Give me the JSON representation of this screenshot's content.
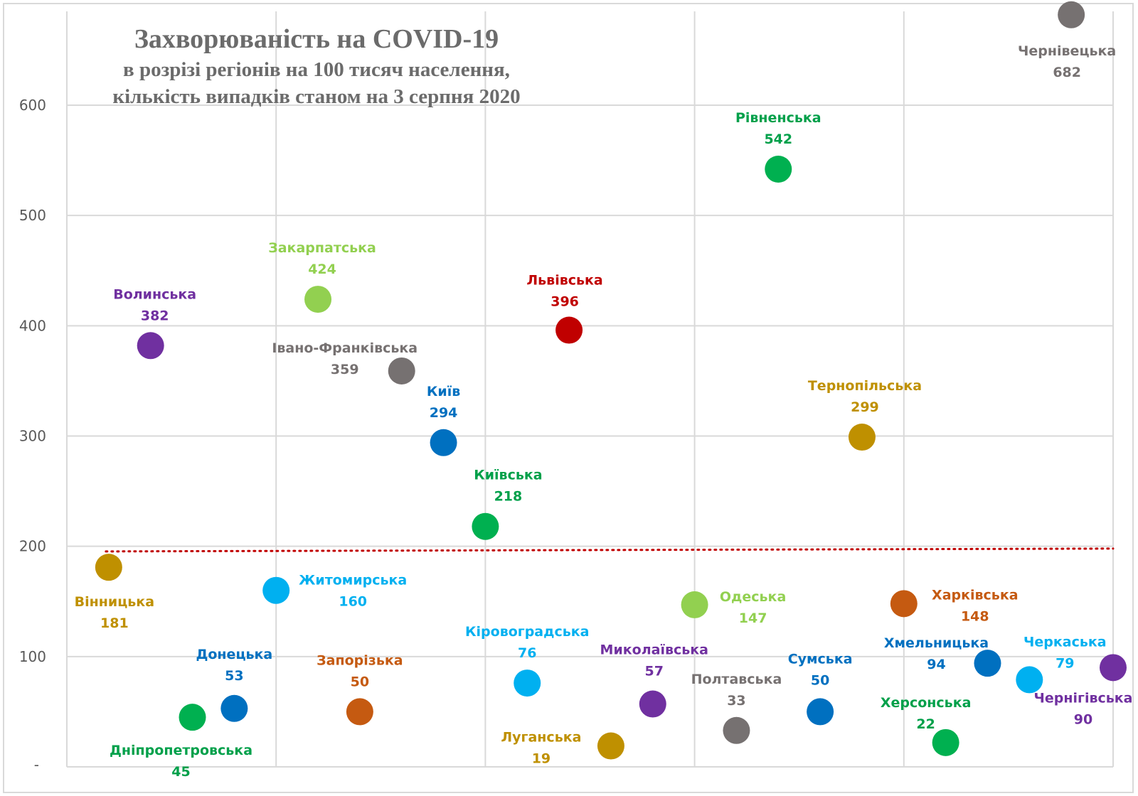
{
  "chart_data": {
    "type": "scatter",
    "title": "Захворюваність на COVID-19",
    "subtitle_lines": [
      "в розрізі регіонів на 100 тисяч населення,",
      "кількість випадків станом на 3 серпня 2020"
    ],
    "xlabel": "",
    "ylabel": "",
    "ylim": [
      0,
      685
    ],
    "xlim": [
      0,
      5
    ],
    "y_ticks": [
      0,
      100,
      200,
      300,
      400,
      500,
      600
    ],
    "y_tick_labels": [
      "-",
      "100",
      "200",
      "300",
      "400",
      "500",
      "600"
    ],
    "x_gridlines": [
      0,
      1,
      2,
      3,
      4,
      5
    ],
    "grid": true,
    "legend": "none",
    "threshold_line": {
      "value": 196,
      "style": "dotted",
      "color": "#C00000",
      "x_start": 0.2,
      "x_end": 5.0
    },
    "points": [
      {
        "name": "Вінницька",
        "x": 0.2,
        "y": 181,
        "color": "#BF9000",
        "label_color": "#BF9000"
      },
      {
        "name": "Волинська",
        "x": 0.4,
        "y": 382,
        "color": "#7030A0",
        "label_color": "#7030A0"
      },
      {
        "name": "Дніпропетровська",
        "x": 0.6,
        "y": 45,
        "color": "#00B050",
        "label_color": "#00A04A"
      },
      {
        "name": "Донецька",
        "x": 0.8,
        "y": 53,
        "color": "#0070C0",
        "label_color": "#0070C0"
      },
      {
        "name": "Житомирська",
        "x": 1.0,
        "y": 160,
        "color": "#00B0F0",
        "label_color": "#00B0F0"
      },
      {
        "name": "Закарпатська",
        "x": 1.2,
        "y": 424,
        "color": "#92D050",
        "label_color": "#92D050"
      },
      {
        "name": "Запорізька",
        "x": 1.4,
        "y": 50,
        "color": "#C55A11",
        "label_color": "#C55A11"
      },
      {
        "name": "Івано-Франківська",
        "x": 1.6,
        "y": 359,
        "color": "#767171",
        "label_color": "#767171"
      },
      {
        "name": "Київ",
        "x": 1.8,
        "y": 294,
        "color": "#0070C0",
        "label_color": "#0070C0"
      },
      {
        "name": "Київська",
        "x": 2.0,
        "y": 218,
        "color": "#00B050",
        "label_color": "#00A04A"
      },
      {
        "name": "Кіровоградська",
        "x": 2.2,
        "y": 76,
        "color": "#00B0F0",
        "label_color": "#00B0F0"
      },
      {
        "name": "Львівська",
        "x": 2.4,
        "y": 396,
        "color": "#C00000",
        "label_color": "#C00000"
      },
      {
        "name": "Луганська",
        "x": 2.6,
        "y": 19,
        "color": "#BF9000",
        "label_color": "#BF9000"
      },
      {
        "name": "Миколаївська",
        "x": 2.8,
        "y": 57,
        "color": "#7030A0",
        "label_color": "#7030A0"
      },
      {
        "name": "Одеська",
        "x": 3.0,
        "y": 147,
        "color": "#92D050",
        "label_color": "#92D050"
      },
      {
        "name": "Полтавська",
        "x": 3.2,
        "y": 33,
        "color": "#767171",
        "label_color": "#767171"
      },
      {
        "name": "Рівненська",
        "x": 3.4,
        "y": 542,
        "color": "#00B050",
        "label_color": "#00A04A"
      },
      {
        "name": "Сумська",
        "x": 3.6,
        "y": 50,
        "color": "#0070C0",
        "label_color": "#0070C0"
      },
      {
        "name": "Тернопільська",
        "x": 3.8,
        "y": 299,
        "color": "#BF9000",
        "label_color": "#BF9000"
      },
      {
        "name": "Харківська",
        "x": 4.0,
        "y": 148,
        "color": "#C55A11",
        "label_color": "#C55A11"
      },
      {
        "name": "Херсонська",
        "x": 4.2,
        "y": 22,
        "color": "#00B050",
        "label_color": "#00A04A"
      },
      {
        "name": "Хмельницька",
        "x": 4.4,
        "y": 94,
        "color": "#0070C0",
        "label_color": "#0070C0"
      },
      {
        "name": "Черкаська",
        "x": 4.6,
        "y": 79,
        "color": "#00B0F0",
        "label_color": "#00B0F0"
      },
      {
        "name": "Чернівецька",
        "x": 4.8,
        "y": 682,
        "color": "#767171",
        "label_color": "#767171"
      },
      {
        "name": "Чернігівська",
        "x": 5.0,
        "y": 90,
        "color": "#7030A0",
        "label_color": "#7030A0"
      }
    ]
  },
  "colors": {
    "gridline": "#d9d9d9",
    "title": "#6b6b6b",
    "tick": "#595959"
  }
}
